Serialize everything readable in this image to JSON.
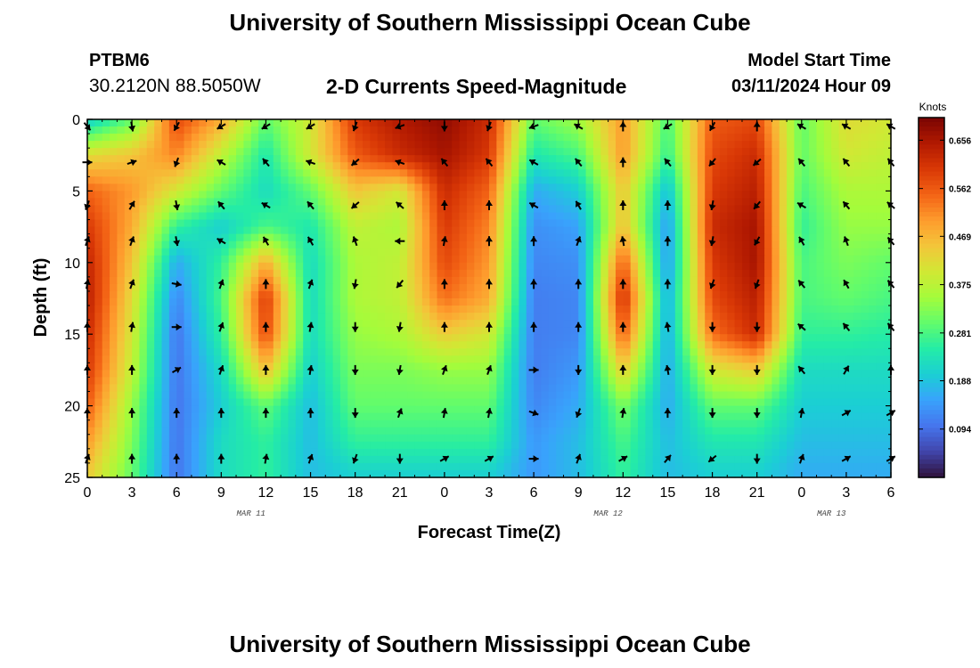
{
  "header": {
    "title": "University of Southern Mississippi Ocean Cube",
    "station": "PTBM6",
    "coords": "30.2120N  88.5050W",
    "plot_title": "2-D Currents Speed-Magnitude",
    "model_start_label": "Model Start Time",
    "model_start_value": "03/11/2024 Hour 09"
  },
  "footer": {
    "title": "University of Southern Mississippi Ocean Cube"
  },
  "chart_data": {
    "type": "heatmap",
    "title": "2-D Currents Speed-Magnitude",
    "xlabel": "Forecast Time(Z)",
    "ylabel": "Depth (ft)",
    "colorbar_label": "Knots",
    "x_tick_labels": [
      "0",
      "3",
      "6",
      "9",
      "12",
      "15",
      "18",
      "21",
      "0",
      "3",
      "6",
      "9",
      "12",
      "15",
      "18",
      "21",
      "0",
      "3",
      "6"
    ],
    "x_hours": [
      0,
      3,
      6,
      9,
      12,
      15,
      18,
      21,
      24,
      27,
      30,
      33,
      36,
      39,
      42,
      45,
      48,
      51,
      54
    ],
    "x_range_hours": [
      0,
      54
    ],
    "date_labels": [
      {
        "label": "MAR 11",
        "hour": 11
      },
      {
        "label": "MAR 12",
        "hour": 35
      },
      {
        "label": "MAR 13",
        "hour": 50
      }
    ],
    "y_ticks": [
      0,
      5,
      10,
      15,
      20,
      25
    ],
    "y_range": [
      0,
      25
    ],
    "y_inverted": true,
    "colorbar_ticks": [
      0.094,
      0.188,
      0.281,
      0.375,
      0.469,
      0.562,
      0.656
    ],
    "colorbar_range": [
      0.0,
      0.7
    ],
    "colormap": [
      "#30123b",
      "#4145ab",
      "#4675ed",
      "#39a2fc",
      "#1bcfd4",
      "#24eca6",
      "#61fc6c",
      "#a4fc3b",
      "#d1e834",
      "#f3c63a",
      "#fe9b2d",
      "#f36315",
      "#d93806",
      "#b11901",
      "#7a0403"
    ],
    "speed_grid": {
      "x_hours": [
        0,
        3,
        6,
        9,
        12,
        15,
        18,
        21,
        24,
        27,
        30,
        33,
        36,
        39,
        42,
        45,
        48,
        51,
        54
      ],
      "depths_ft": [
        0,
        2.5,
        5,
        7.5,
        10,
        12.5,
        15,
        17.5,
        20,
        22.5,
        25
      ],
      "values_knots": [
        [
          0.2,
          0.3,
          0.58,
          0.48,
          0.3,
          0.4,
          0.6,
          0.65,
          0.68,
          0.62,
          0.3,
          0.35,
          0.5,
          0.28,
          0.56,
          0.58,
          0.3,
          0.42,
          0.4
        ],
        [
          0.42,
          0.45,
          0.52,
          0.38,
          0.24,
          0.4,
          0.56,
          0.62,
          0.66,
          0.6,
          0.24,
          0.28,
          0.5,
          0.26,
          0.58,
          0.62,
          0.3,
          0.4,
          0.38
        ],
        [
          0.55,
          0.5,
          0.4,
          0.3,
          0.22,
          0.3,
          0.45,
          0.4,
          0.62,
          0.55,
          0.16,
          0.2,
          0.45,
          0.18,
          0.6,
          0.64,
          0.28,
          0.36,
          0.36
        ],
        [
          0.6,
          0.48,
          0.26,
          0.2,
          0.28,
          0.24,
          0.38,
          0.36,
          0.6,
          0.52,
          0.13,
          0.15,
          0.46,
          0.14,
          0.62,
          0.66,
          0.26,
          0.34,
          0.34
        ],
        [
          0.63,
          0.45,
          0.16,
          0.26,
          0.48,
          0.22,
          0.36,
          0.38,
          0.58,
          0.5,
          0.12,
          0.13,
          0.56,
          0.14,
          0.6,
          0.66,
          0.28,
          0.32,
          0.3
        ],
        [
          0.64,
          0.42,
          0.12,
          0.28,
          0.6,
          0.22,
          0.36,
          0.38,
          0.54,
          0.48,
          0.11,
          0.12,
          0.62,
          0.16,
          0.58,
          0.64,
          0.28,
          0.3,
          0.28
        ],
        [
          0.62,
          0.4,
          0.1,
          0.26,
          0.58,
          0.22,
          0.34,
          0.36,
          0.44,
          0.4,
          0.11,
          0.12,
          0.56,
          0.16,
          0.54,
          0.62,
          0.26,
          0.26,
          0.25
        ],
        [
          0.6,
          0.38,
          0.1,
          0.22,
          0.46,
          0.2,
          0.32,
          0.32,
          0.34,
          0.34,
          0.11,
          0.14,
          0.44,
          0.16,
          0.4,
          0.44,
          0.22,
          0.22,
          0.22
        ],
        [
          0.56,
          0.34,
          0.1,
          0.2,
          0.3,
          0.18,
          0.3,
          0.3,
          0.3,
          0.3,
          0.12,
          0.16,
          0.32,
          0.16,
          0.3,
          0.3,
          0.2,
          0.2,
          0.2
        ],
        [
          0.5,
          0.32,
          0.1,
          0.22,
          0.26,
          0.18,
          0.26,
          0.26,
          0.26,
          0.26,
          0.14,
          0.18,
          0.28,
          0.18,
          0.24,
          0.24,
          0.18,
          0.18,
          0.18
        ],
        [
          0.44,
          0.3,
          0.1,
          0.22,
          0.26,
          0.18,
          0.2,
          0.2,
          0.2,
          0.2,
          0.14,
          0.18,
          0.26,
          0.18,
          0.2,
          0.2,
          0.16,
          0.16,
          0.16
        ]
      ]
    },
    "vectors": {
      "x_hours": [
        0,
        3,
        6,
        9,
        12,
        15,
        18,
        21,
        24,
        27,
        30,
        33,
        36,
        39,
        42,
        45,
        48,
        51,
        54
      ],
      "depths_ft": [
        0.5,
        3,
        6,
        8.5,
        11.5,
        14.5,
        17.5,
        20.5,
        23.7
      ],
      "direction_deg": [
        [
          140,
          170,
          210,
          240,
          240,
          240,
          200,
          250,
          180,
          200,
          250,
          300,
          0,
          240,
          210,
          0,
          300,
          300,
          300
        ],
        [
          90,
          70,
          200,
          300,
          320,
          290,
          230,
          290,
          320,
          320,
          300,
          320,
          0,
          320,
          220,
          230,
          320,
          320,
          320
        ],
        [
          200,
          30,
          170,
          320,
          300,
          320,
          230,
          310,
          0,
          0,
          300,
          330,
          0,
          0,
          190,
          220,
          300,
          320,
          310
        ],
        [
          20,
          20,
          170,
          300,
          330,
          330,
          340,
          270,
          10,
          0,
          0,
          20,
          350,
          0,
          190,
          210,
          330,
          340,
          320
        ],
        [
          10,
          20,
          100,
          20,
          0,
          20,
          190,
          220,
          0,
          0,
          0,
          0,
          0,
          0,
          200,
          200,
          320,
          330,
          320
        ],
        [
          0,
          10,
          90,
          20,
          0,
          10,
          180,
          190,
          0,
          0,
          0,
          0,
          0,
          350,
          180,
          180,
          310,
          320,
          320
        ],
        [
          0,
          0,
          60,
          20,
          0,
          10,
          180,
          190,
          20,
          20,
          90,
          180,
          0,
          350,
          180,
          180,
          320,
          30,
          0
        ],
        [
          0,
          0,
          0,
          0,
          0,
          0,
          180,
          20,
          10,
          10,
          110,
          200,
          10,
          0,
          180,
          180,
          10,
          60,
          60
        ],
        [
          20,
          0,
          0,
          0,
          10,
          20,
          200,
          180,
          60,
          60,
          90,
          20,
          60,
          40,
          230,
          180,
          20,
          60,
          60
        ]
      ]
    }
  }
}
